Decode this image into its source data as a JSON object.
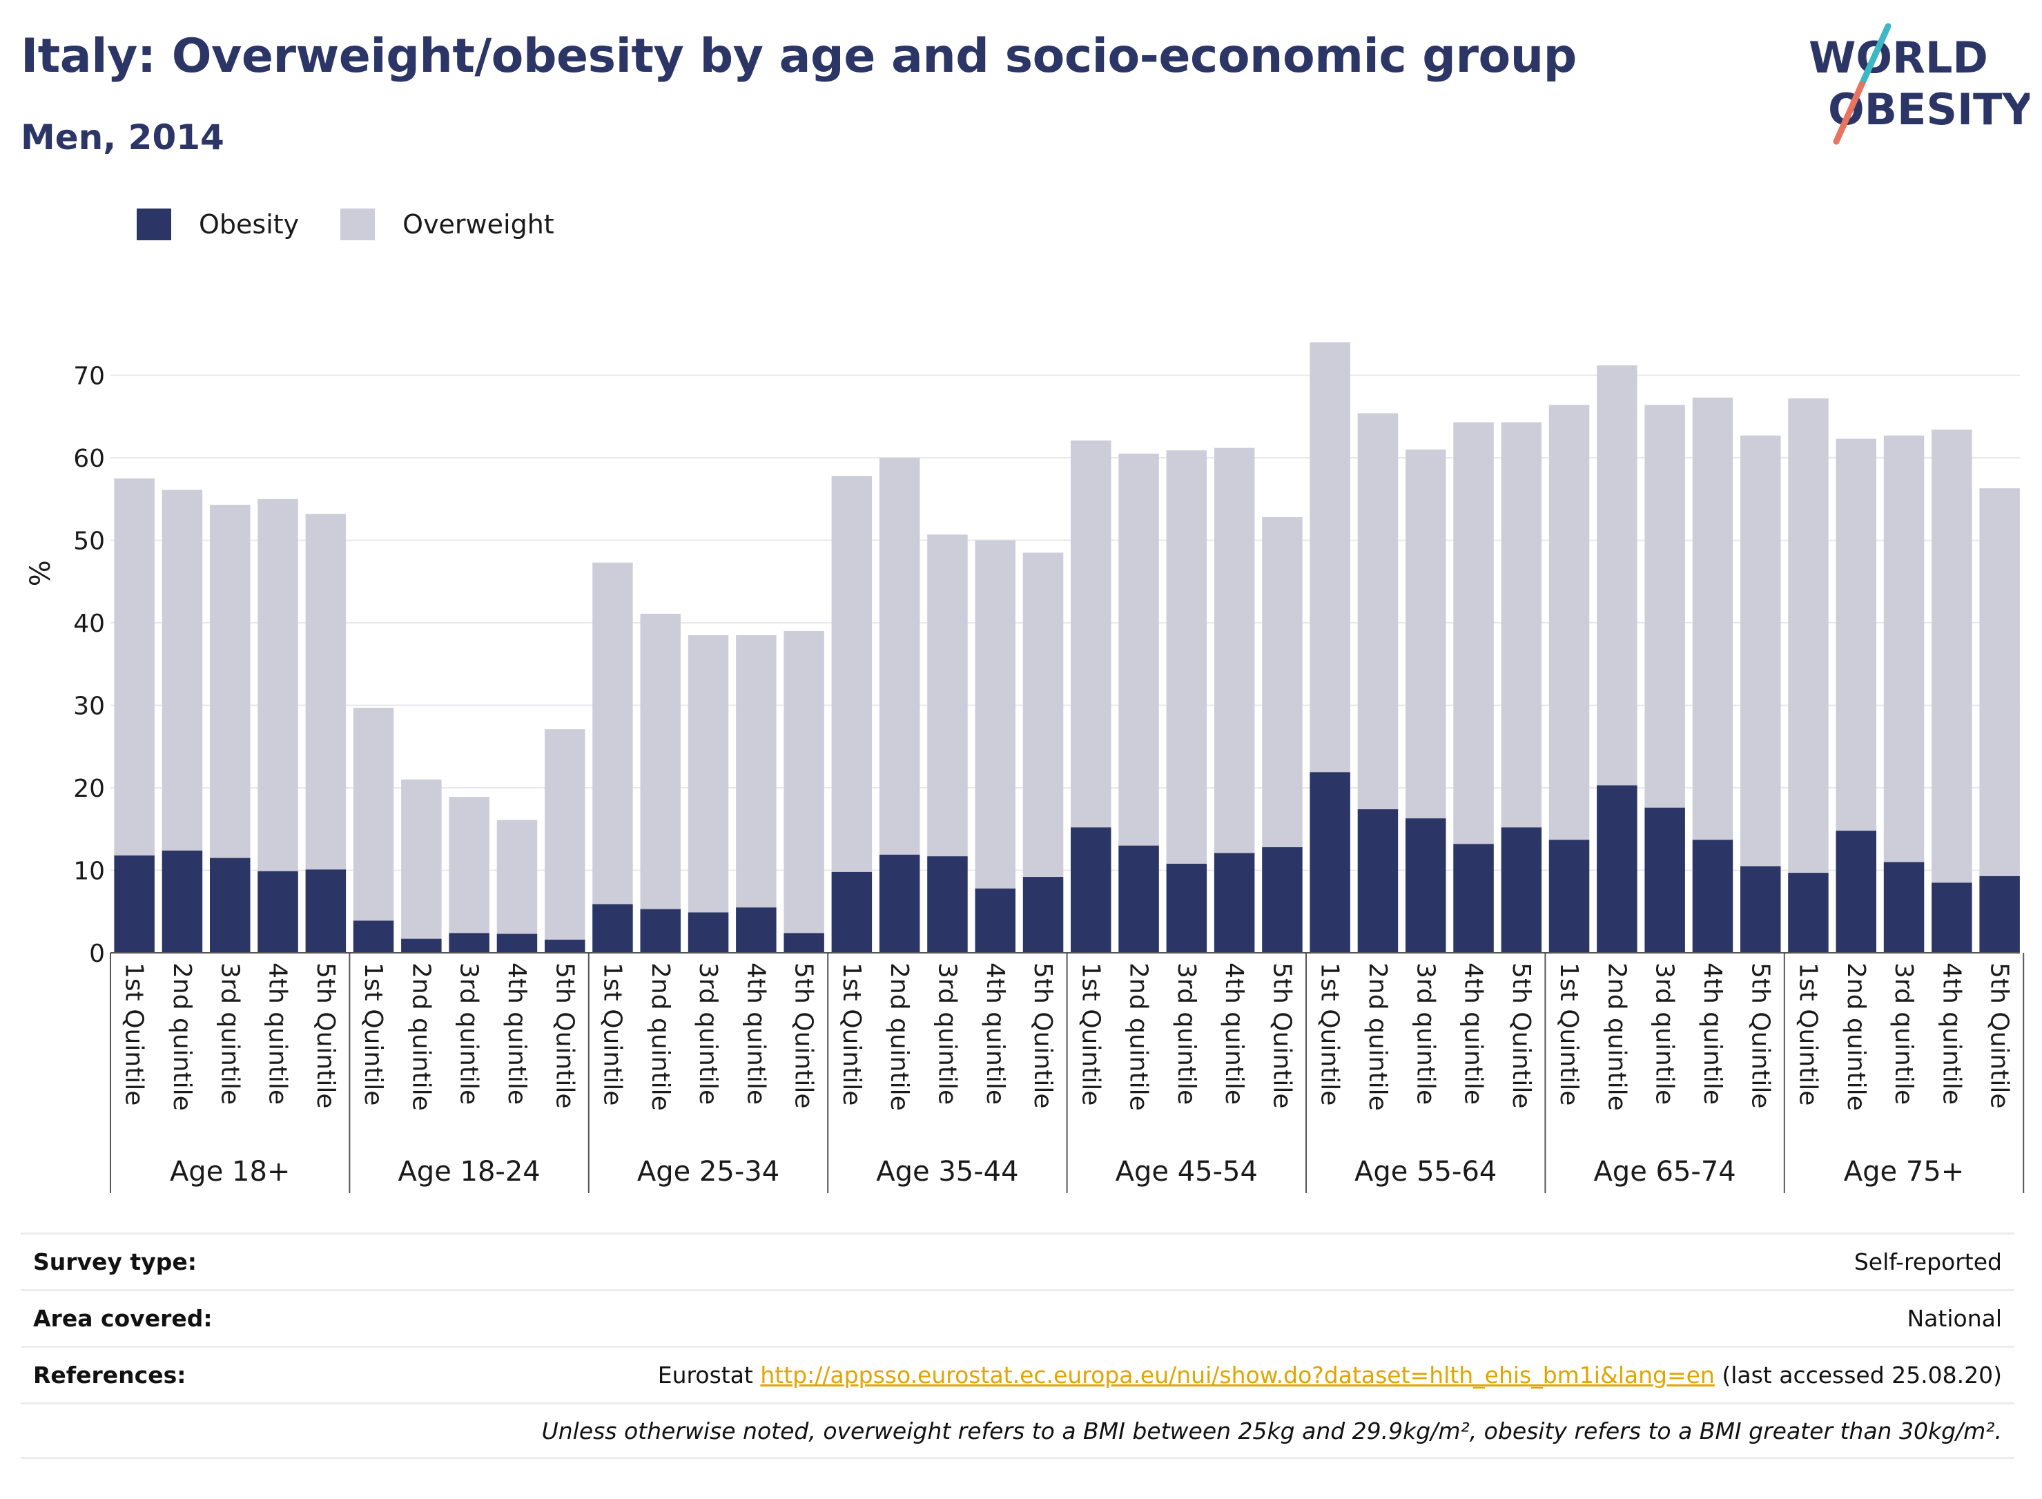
{
  "title": "Italy: Overweight/obesity by age and socio-economic group",
  "subtitle": "Men, 2014",
  "logo": {
    "line1": "WORLD",
    "line2": "OBESITY"
  },
  "colors": {
    "obesity": "#2b3566",
    "overweight": "#cdcdd9",
    "title": "#2b3566",
    "link": "#e0a500",
    "logo_accent_teal": "#3bb8c4",
    "logo_accent_red": "#e8735f"
  },
  "legend": [
    {
      "label": "Obesity",
      "color": "#2b3566"
    },
    {
      "label": "Overweight",
      "color": "#cdcdd9"
    }
  ],
  "chart_data": {
    "type": "bar",
    "stacked": true,
    "ylabel": "%",
    "ylim": [
      0,
      75
    ],
    "yticks": [
      0,
      10,
      20,
      30,
      40,
      50,
      60,
      70
    ],
    "grid": true,
    "legend_position": "top-left",
    "groups": [
      {
        "label": "Age 18+",
        "categories": [
          "1st Quintile",
          "2nd quintile",
          "3rd quintile",
          "4th quintile",
          "5th Quintile"
        ],
        "obesity": [
          11.8,
          12.4,
          11.5,
          9.9,
          10.1
        ],
        "total": [
          57.5,
          56.1,
          54.3,
          55.0,
          53.2
        ]
      },
      {
        "label": "Age 18-24",
        "categories": [
          "1st Quintile",
          "2nd quintile",
          "3rd quintile",
          "4th quintile",
          "5th Quintile"
        ],
        "obesity": [
          3.9,
          1.7,
          2.4,
          2.3,
          1.6
        ],
        "total": [
          29.7,
          21.0,
          18.9,
          16.1,
          27.1
        ]
      },
      {
        "label": "Age 25-34",
        "categories": [
          "1st Quintile",
          "2nd quintile",
          "3rd quintile",
          "4th quintile",
          "5th Quintile"
        ],
        "obesity": [
          5.9,
          5.3,
          4.9,
          5.5,
          2.4
        ],
        "total": [
          47.3,
          41.1,
          38.5,
          38.5,
          39.0
        ]
      },
      {
        "label": "Age 35-44",
        "categories": [
          "1st Quintile",
          "2nd quintile",
          "3rd quintile",
          "4th quintile",
          "5th Quintile"
        ],
        "obesity": [
          9.8,
          11.9,
          11.7,
          7.8,
          9.2
        ],
        "total": [
          57.8,
          60.0,
          50.7,
          50.0,
          48.5
        ]
      },
      {
        "label": "Age 45-54",
        "categories": [
          "1st Quintile",
          "2nd quintile",
          "3rd quintile",
          "4th quintile",
          "5th Quintile"
        ],
        "obesity": [
          15.2,
          13.0,
          10.8,
          12.1,
          12.8
        ],
        "total": [
          62.1,
          60.5,
          60.9,
          61.2,
          52.8
        ]
      },
      {
        "label": "Age 55-64",
        "categories": [
          "1st Quintile",
          "2nd quintile",
          "3rd quintile",
          "4th quintile",
          "5th Quintile"
        ],
        "obesity": [
          21.9,
          17.4,
          16.3,
          13.2,
          15.2
        ],
        "total": [
          74.0,
          65.4,
          61.0,
          64.3,
          64.3
        ]
      },
      {
        "label": "Age 65-74",
        "categories": [
          "1st Quintile",
          "2nd quintile",
          "3rd quintile",
          "4th quintile",
          "5th Quintile"
        ],
        "obesity": [
          13.7,
          20.3,
          17.6,
          13.7,
          10.5
        ],
        "total": [
          66.4,
          71.2,
          66.4,
          67.3,
          62.7
        ]
      },
      {
        "label": "Age 75+",
        "categories": [
          "1st Quintile",
          "2nd quintile",
          "3rd quintile",
          "4th quintile",
          "5th Quintile"
        ],
        "obesity": [
          9.7,
          14.8,
          11.0,
          8.5,
          9.3
        ],
        "total": [
          67.2,
          62.3,
          62.7,
          63.4,
          56.3
        ]
      }
    ]
  },
  "meta": {
    "survey_type_label": "Survey type:",
    "survey_type_value": "Self-reported",
    "area_label": "Area covered:",
    "area_value": "National",
    "references_label": "References:",
    "references_prefix": "Eurostat ",
    "references_link": "http://appsso.eurostat.ec.europa.eu/nui/show.do?dataset=hlth_ehis_bm1i&lang=en",
    "references_suffix": " (last accessed 25.08.20)",
    "note": "Unless otherwise noted, overweight refers to a BMI between 25kg and 29.9kg/m², obesity refers to a BMI greater than 30kg/m²."
  }
}
